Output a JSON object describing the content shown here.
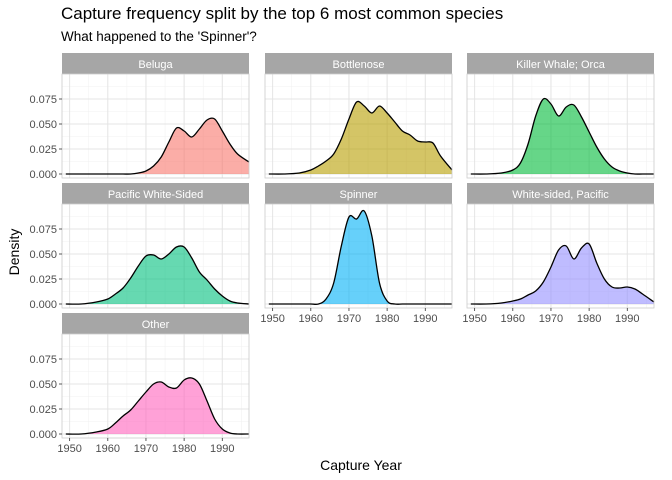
{
  "figure": {
    "title": "Capture frequency split by the top 6 most common species",
    "subtitle": "What happened to the 'Spinner'?"
  },
  "colors": {
    "strip": "#a6a6a6",
    "grid_major": "#e4e4e4",
    "grid_minor": "#f2f2f2",
    "panel_border": "#cccccc"
  },
  "chart_data": {
    "type": "area",
    "subtype": "faceted density",
    "xlabel": "Capture Year",
    "ylabel": "Density",
    "xlim": [
      1948,
      1997
    ],
    "ylim": [
      -0.004,
      0.1
    ],
    "x_ticks": [
      1950,
      1960,
      1970,
      1980,
      1990
    ],
    "y_ticks": [
      0.0,
      0.025,
      0.05,
      0.075
    ],
    "y_tick_labels": [
      "0.000",
      "0.025",
      "0.050",
      "0.075"
    ],
    "grid": true,
    "x": [
      1949,
      1953,
      1957,
      1960,
      1962,
      1964,
      1966,
      1968,
      1970,
      1972,
      1974,
      1976,
      1978,
      1980,
      1982,
      1984,
      1986,
      1988,
      1990,
      1992,
      1994,
      1997
    ],
    "series": [
      {
        "name": "Beluga",
        "color": "#f8766d",
        "values": [
          0,
          0,
          0,
          0,
          0,
          0,
          0,
          0.001,
          0.003,
          0.008,
          0.017,
          0.032,
          0.046,
          0.043,
          0.037,
          0.045,
          0.054,
          0.055,
          0.043,
          0.03,
          0.02,
          0.012
        ]
      },
      {
        "name": "Bottlenose",
        "color": "#b79f00",
        "values": [
          0,
          0,
          0.001,
          0.004,
          0.008,
          0.013,
          0.02,
          0.035,
          0.055,
          0.072,
          0.068,
          0.061,
          0.068,
          0.061,
          0.052,
          0.043,
          0.039,
          0.033,
          0.032,
          0.031,
          0.018,
          0.004
        ]
      },
      {
        "name": "Killer Whale; Orca",
        "color": "#00ba38",
        "values": [
          0,
          0,
          0.001,
          0.004,
          0.011,
          0.03,
          0.058,
          0.075,
          0.07,
          0.058,
          0.067,
          0.069,
          0.057,
          0.042,
          0.027,
          0.015,
          0.007,
          0.003,
          0.001,
          0,
          0,
          0
        ]
      },
      {
        "name": "Pacific White-Sided",
        "color": "#00bf7d",
        "values": [
          0,
          0,
          0.002,
          0.005,
          0.01,
          0.016,
          0.026,
          0.038,
          0.048,
          0.049,
          0.045,
          0.05,
          0.057,
          0.057,
          0.046,
          0.032,
          0.024,
          0.015,
          0.008,
          0.003,
          0.001,
          0
        ]
      },
      {
        "name": "Spinner",
        "color": "#00b0f6",
        "values": [
          0,
          0,
          0,
          0,
          0,
          0.005,
          0.021,
          0.058,
          0.087,
          0.085,
          0.093,
          0.068,
          0.021,
          0.003,
          0,
          0,
          0,
          0,
          0,
          0,
          0,
          0
        ]
      },
      {
        "name": "White-sided, Pacific",
        "color": "#9590ff",
        "values": [
          0,
          0,
          0.001,
          0.003,
          0.005,
          0.009,
          0.013,
          0.022,
          0.037,
          0.054,
          0.058,
          0.045,
          0.056,
          0.06,
          0.041,
          0.025,
          0.017,
          0.016,
          0.017,
          0.015,
          0.01,
          0.002
        ]
      },
      {
        "name": "Other",
        "color": "#ff62bc",
        "values": [
          0,
          0,
          0.002,
          0.005,
          0.011,
          0.018,
          0.024,
          0.033,
          0.042,
          0.05,
          0.052,
          0.047,
          0.046,
          0.054,
          0.056,
          0.05,
          0.033,
          0.015,
          0.005,
          0.001,
          0,
          0
        ]
      }
    ]
  }
}
